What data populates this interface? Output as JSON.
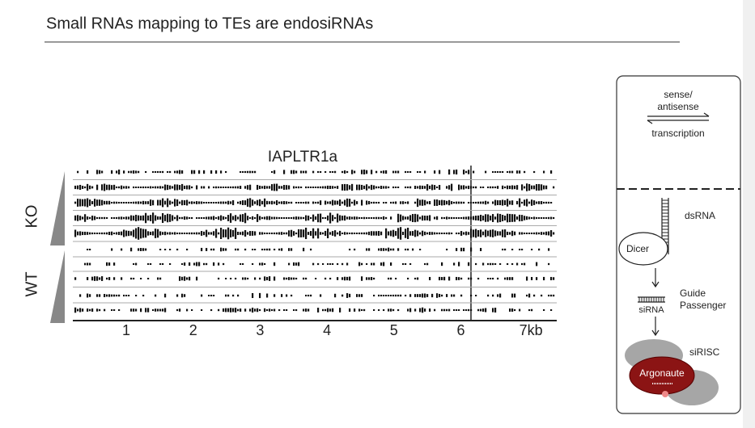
{
  "header": {
    "title": "Small RNAs mapping to TEs are endosiRNAs"
  },
  "figure": {
    "title": "IAPLTR1a",
    "groups": [
      "KO",
      "WT"
    ],
    "axis_ticks": [
      "1",
      "2",
      "3",
      "4",
      "5",
      "6",
      "7kb"
    ]
  },
  "diagram": {
    "top": {
      "lines": [
        "sense/",
        "antisense"
      ],
      "caption": "transcription"
    },
    "labels": {
      "dsrna": "dsRNA",
      "dicer": "Dicer",
      "sirna": "siRNA",
      "guide": "Guide",
      "passenger": "Passenger",
      "sirisc": "siRISC",
      "argonaute": "Argonaute"
    }
  }
}
